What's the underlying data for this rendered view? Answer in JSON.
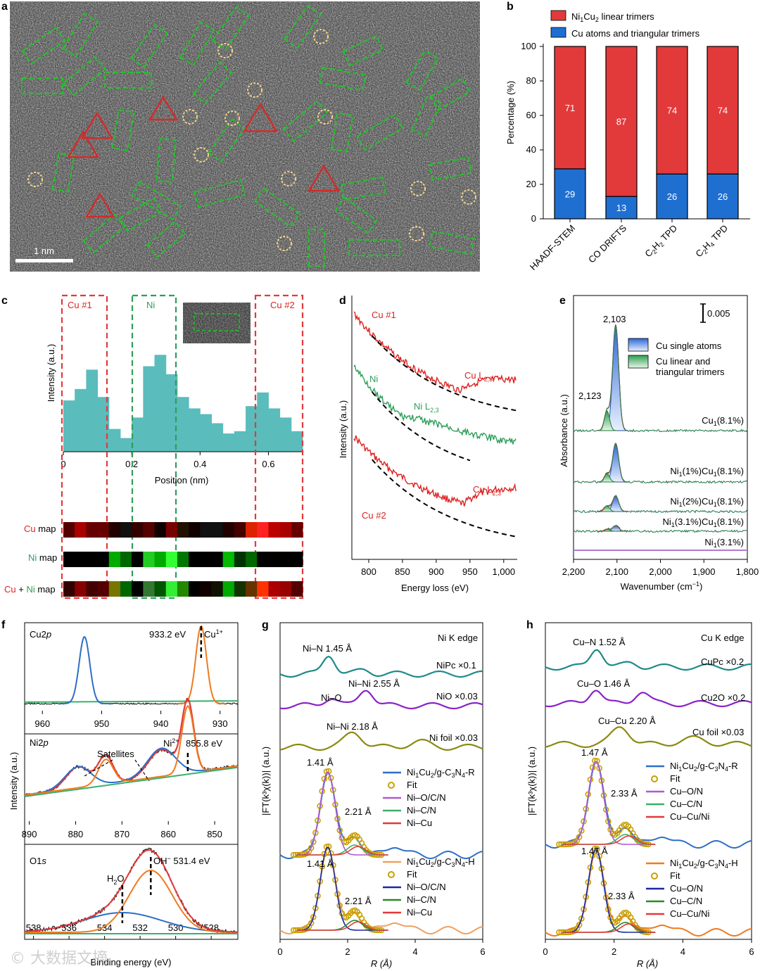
{
  "panels": {
    "a": {
      "letter": "a",
      "scale_label": "1 nm"
    },
    "b": {
      "letter": "b"
    },
    "c": {
      "letter": "c",
      "ylabel": "Intensity (a.u.)",
      "xlabel": "Position (nm)",
      "region_cu1": "Cu #1",
      "region_ni": "Ni",
      "region_cu2": "Cu #2",
      "maps": [
        {
          "label_a": "Cu",
          "label_b": " map"
        },
        {
          "label_a": "Ni",
          "label_b": " map"
        },
        {
          "label_a": "Cu",
          "label_mid": " + ",
          "label_c": "Ni",
          "label_b": " map"
        }
      ]
    },
    "d": {
      "letter": "d",
      "ylabel": "Intensity (a.u.)",
      "xlabel": "Energy loss (eV)",
      "s1": "Cu #1",
      "s2": "Ni",
      "s3": "Cu #2",
      "e1": "Cu L",
      "e1sub": "2,3",
      "e2": "Ni L",
      "e2sub": "2,3",
      "e3": "Cu L",
      "e3sub": "2,3"
    },
    "e": {
      "letter": "e",
      "ylabel": "Absorbance (a.u.)",
      "xlabel": "Wavenumber (cm",
      "xlabel_sup": "−1",
      "xlabel_end": ")",
      "scalebar": "0.005",
      "peak1": "2,103",
      "peak2": "2,123",
      "legend1": "Cu single atoms",
      "legend2a": "Cu linear and",
      "legend2b": "triangular trimers",
      "traces": [
        {
          "a": "Cu",
          "s": "1",
          "b": "(8.1%)"
        },
        {
          "a": "Ni",
          "s": "1",
          "b": "(1%)Cu",
          "s2": "1",
          "c": "(8.1%)"
        },
        {
          "a": "Ni",
          "s": "1",
          "b": "(2%)Cu",
          "s2": "1",
          "c": "(8.1%)"
        },
        {
          "a": "Ni",
          "s": "1",
          "b": "(3.1%)Cu",
          "s2": "1",
          "c": "(8.1%)"
        },
        {
          "a": "Ni",
          "s": "1",
          "b": "(3.1%)"
        }
      ]
    },
    "f": {
      "letter": "f",
      "ylabel": "Intensity (a.u.)",
      "xlabel": "Binding energy (eV)",
      "cu_title": "Cu2",
      "cu_title_p": "p",
      "cu_peak": "933.2 eV",
      "cu_state": "Cu",
      "cu_state_sup": "1+",
      "ni_title": "Ni2",
      "ni_title_p": "p",
      "ni_sat": "Satellites",
      "ni_state": "Ni",
      "ni_state_sup": "2+",
      "ni_peak": "855.8 eV",
      "o_title": "O1",
      "o_title_s": "s",
      "o_oh": "OH",
      "o_oh_sup": "−",
      "o_peak": " 531.4 eV",
      "o_h2o": "H",
      "o_h2o_sub": "2",
      "o_h2o_end": "O"
    },
    "g": {
      "letter": "g",
      "edge": "Ni K edge",
      "ylabel": "|FT(k³χ(k))| (a.u.)",
      "xlabel": "R (Å)",
      "ref1": "Ni–N 1.45 Å",
      "ref1_name": "NiPc ×0.1",
      "ref2a": "Ni–Ni 2.55 Å",
      "ref2b": "Ni–O",
      "ref2_name": "NiO ×0.03",
      "ref3": "Ni–Ni 2.18 Å",
      "ref3_name": "Ni foil ×0.03",
      "peakA": "1.41 Å",
      "peakB": "2.21 Å",
      "legR": [
        "Ni1Cu2/g-C3N4-R",
        "Fit",
        "Ni–O/C/N",
        "Ni–C/N",
        "Ni–Cu"
      ],
      "legH": [
        "Ni1Cu2/g-C3N4-H",
        "Fit",
        "Ni–O/C/N",
        "Ni–C/N",
        "Ni–Cu"
      ]
    },
    "h": {
      "letter": "h",
      "edge": "Cu K edge",
      "ylabel": "|FT(k³χ(k))| (a.u.)",
      "xlabel": "R (Å)",
      "ref1": "Cu–N 1.52 Å",
      "ref1_name": "CuPc ×0.2",
      "ref2a": "Cu–O 1.46 Å",
      "ref2_name": "Cu2O ×0.2",
      "ref3": "Cu–Cu 2.20 Å",
      "ref3_name": "Cu foil ×0.03",
      "peakA": "1.47 Å",
      "peakB": "2.33 Å",
      "legR": [
        "Ni1Cu2/g-C3N4-R",
        "Fit",
        "Cu–O/N",
        "Cu–C/N",
        "Cu–Cu/Ni"
      ],
      "legH": [
        "Ni1Cu2/g-C3N4-H",
        "Fit",
        "Cu–O/N",
        "Cu–C/N",
        "Cu–Cu/Ni"
      ]
    }
  },
  "watermark": "© 大数据文摘",
  "colors": {
    "red": "#e23a3a",
    "blue": "#1f6fd1",
    "teal": "#5bbcbc",
    "green": "#2e9e5b",
    "dash": "#22c22a"
  },
  "chart_data": [
    {
      "panel": "b",
      "type": "bar",
      "title": "",
      "ylabel": "Percentage (%)",
      "ylim": [
        0,
        100
      ],
      "yticks": [
        0,
        20,
        40,
        60,
        80,
        100
      ],
      "categories": [
        "HAADF-STEM",
        "CO DRIFTS",
        "C2H2 TPD",
        "C2H4 TPD"
      ],
      "series": [
        {
          "name": "Cu atoms and triangular trimers",
          "values": [
            29,
            13,
            26,
            26
          ],
          "color": "#1f6fd1"
        },
        {
          "name": "Ni1Cu2 linear trimers",
          "values": [
            71,
            87,
            74,
            74
          ],
          "color": "#e23a3a"
        }
      ]
    },
    {
      "panel": "c",
      "type": "bar",
      "xlim": [
        0,
        0.7
      ],
      "xticks": [
        0,
        0.2,
        0.4,
        0.6
      ],
      "x": [
        0.0,
        0.033,
        0.067,
        0.1,
        0.133,
        0.167,
        0.2,
        0.233,
        0.267,
        0.3,
        0.333,
        0.367,
        0.4,
        0.433,
        0.467,
        0.5,
        0.533,
        0.567,
        0.6,
        0.633,
        0.667
      ],
      "values": [
        0.45,
        0.55,
        0.72,
        0.48,
        0.2,
        0.12,
        0.3,
        0.75,
        0.85,
        0.68,
        0.48,
        0.38,
        0.33,
        0.25,
        0.16,
        0.18,
        0.4,
        0.52,
        0.38,
        0.3,
        0.18
      ]
    },
    {
      "panel": "f",
      "type": "line",
      "subplots": [
        {
          "name": "Cu2p",
          "xlim": [
            963,
            927
          ],
          "xticks": [
            960,
            950,
            940,
            930
          ]
        },
        {
          "name": "Ni2p",
          "xlim": [
            891,
            845
          ],
          "xticks": [
            890,
            880,
            870,
            860,
            850
          ]
        },
        {
          "name": "O1s",
          "xlim": [
            538.5,
            526.5
          ],
          "xticks": [
            538,
            536,
            534,
            532,
            530,
            528
          ]
        }
      ]
    }
  ]
}
